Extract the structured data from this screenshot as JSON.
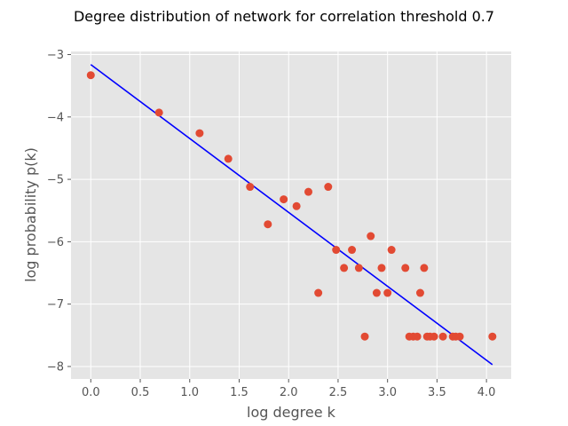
{
  "chart_data": {
    "type": "scatter",
    "title": "Degree distribution of network for correlation threshold 0.7",
    "xlabel": "log degree k",
    "ylabel": "log probability p(k)",
    "xlim": [
      -0.2,
      4.25
    ],
    "ylim": [
      -8.2,
      -2.95
    ],
    "xticks": [
      0.0,
      0.5,
      1.0,
      1.5,
      2.0,
      2.5,
      3.0,
      3.5,
      4.0
    ],
    "xtick_labels": [
      "0.0",
      "0.5",
      "1.0",
      "1.5",
      "2.0",
      "2.5",
      "3.0",
      "3.5",
      "4.0"
    ],
    "yticks": [
      -8,
      -7,
      -6,
      -5,
      -4,
      -3
    ],
    "ytick_labels": [
      "−8",
      "−7",
      "−6",
      "−5",
      "−4",
      "−3"
    ],
    "grid": true,
    "background_color": "#e5e5e5",
    "grid_color": "#ffffff",
    "points": {
      "color": "#e24a33",
      "x": [
        0.0,
        0.69,
        1.1,
        1.39,
        1.61,
        1.79,
        1.95,
        2.08,
        2.2,
        2.3,
        2.4,
        2.48,
        2.56,
        2.64,
        2.71,
        2.77,
        2.83,
        2.89,
        2.94,
        3.0,
        3.04,
        3.18,
        3.22,
        3.26,
        3.3,
        3.33,
        3.37,
        3.4,
        3.43,
        3.47,
        3.56,
        3.66,
        3.69,
        3.73,
        4.06
      ],
      "y": [
        -3.33,
        -3.93,
        -4.26,
        -4.67,
        -5.12,
        -5.72,
        -5.32,
        -5.43,
        -5.2,
        -6.82,
        -5.12,
        -6.13,
        -6.42,
        -6.13,
        -6.42,
        -7.52,
        -5.91,
        -6.82,
        -6.42,
        -6.82,
        -6.13,
        -6.42,
        -7.52,
        -7.52,
        -7.52,
        -6.82,
        -6.42,
        -7.52,
        -7.52,
        -7.52,
        -7.52,
        -7.52,
        -7.52,
        -7.52,
        -7.52
      ]
    },
    "fit_line": {
      "color": "#0000ff",
      "x": [
        0.0,
        4.06
      ],
      "y": [
        -3.16,
        -7.97
      ]
    }
  }
}
